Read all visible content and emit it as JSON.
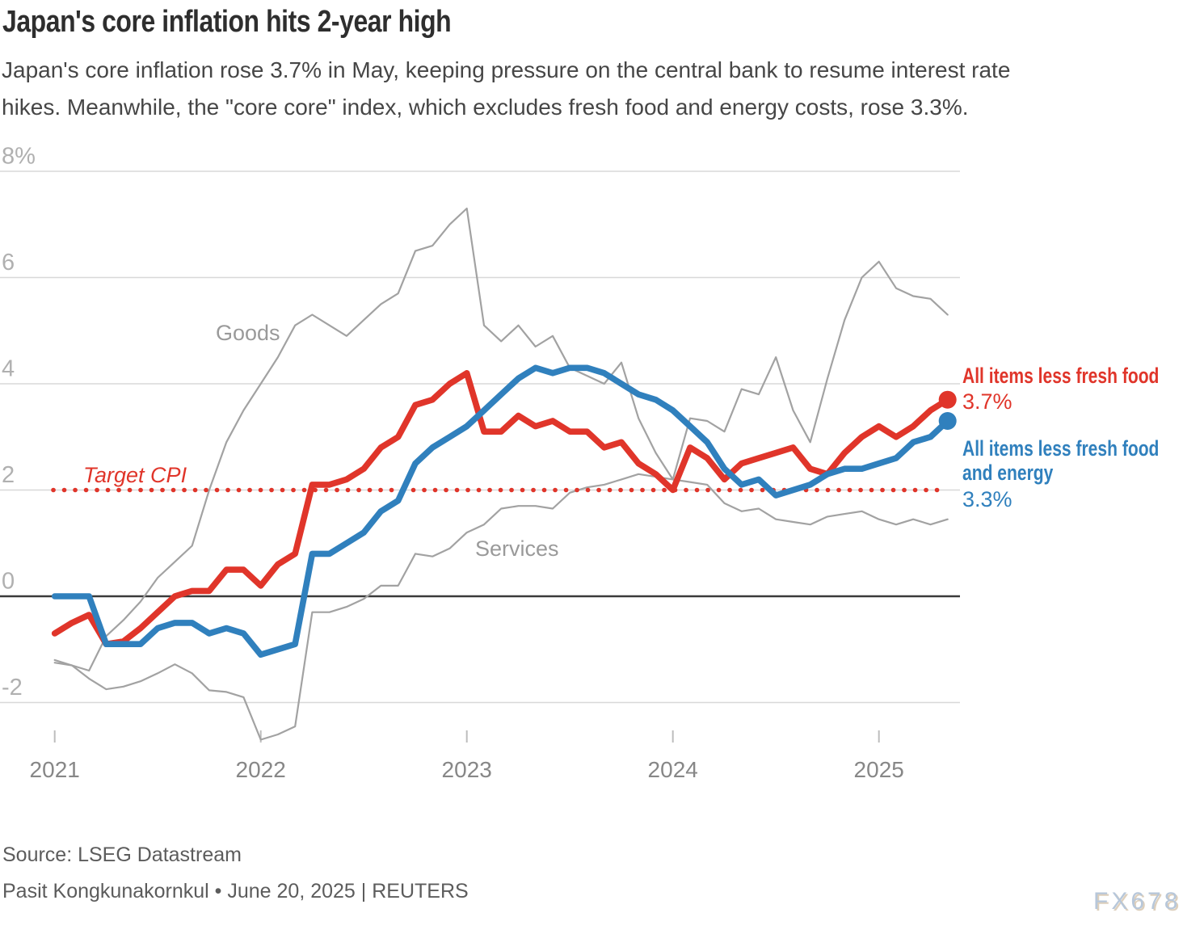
{
  "header": {
    "title": "Japan's core inflation hits 2-year high",
    "subtitle_lines": [
      "Japan's core inflation rose 3.7% in May, keeping pressure on the central bank to resume interest rate",
      "hikes. Meanwhile, the \"core core\" index, which excludes fresh food and energy costs, rose 3.3%."
    ]
  },
  "chart_data": {
    "type": "line",
    "title": "Japan's core inflation hits 2-year high",
    "ylabel": "",
    "xlabel": "",
    "y_unit": "%",
    "ylim": [
      -3,
      8
    ],
    "grid": true,
    "legend_position": "inline-right-annotations",
    "x_categories": [
      "2021-01",
      "2021-02",
      "2021-03",
      "2021-04",
      "2021-05",
      "2021-06",
      "2021-07",
      "2021-08",
      "2021-09",
      "2021-10",
      "2021-11",
      "2021-12",
      "2022-01",
      "2022-02",
      "2022-03",
      "2022-04",
      "2022-05",
      "2022-06",
      "2022-07",
      "2022-08",
      "2022-09",
      "2022-10",
      "2022-11",
      "2022-12",
      "2023-01",
      "2023-02",
      "2023-03",
      "2023-04",
      "2023-05",
      "2023-06",
      "2023-07",
      "2023-08",
      "2023-09",
      "2023-10",
      "2023-11",
      "2023-12",
      "2024-01",
      "2024-02",
      "2024-03",
      "2024-04",
      "2024-05",
      "2024-06",
      "2024-07",
      "2024-08",
      "2024-09",
      "2024-10",
      "2024-11",
      "2024-12",
      "2025-01",
      "2025-02",
      "2025-03",
      "2025-04",
      "2025-05"
    ],
    "y_ticks": [
      {
        "value": 8,
        "label": "8%"
      },
      {
        "value": 6,
        "label": "6"
      },
      {
        "value": 4,
        "label": "4"
      },
      {
        "value": 2,
        "label": "2"
      },
      {
        "value": 0,
        "label": "0"
      },
      {
        "value": -2,
        "label": "-2"
      }
    ],
    "x_ticks": [
      {
        "month_index": 0,
        "label": "2021"
      },
      {
        "month_index": 12,
        "label": "2022"
      },
      {
        "month_index": 24,
        "label": "2023"
      },
      {
        "month_index": 36,
        "label": "2024"
      },
      {
        "month_index": 48,
        "label": "2025"
      }
    ],
    "target": {
      "value": 2,
      "label": "Target CPI",
      "color": "#e0352a"
    },
    "series_labels": {
      "goods": "Goods",
      "services": "Services"
    },
    "series": [
      {
        "id": "goods",
        "name": "Goods",
        "color": "#a2a2a2",
        "line_width": 2.2,
        "layer": "bg",
        "end_dot": false,
        "values": [
          -1.25,
          -1.3,
          -1.4,
          -0.75,
          -0.45,
          -0.1,
          0.35,
          0.65,
          0.95,
          2.0,
          2.9,
          3.5,
          4.0,
          4.5,
          5.1,
          5.3,
          5.1,
          4.9,
          5.2,
          5.5,
          5.7,
          6.5,
          6.6,
          7.0,
          7.3,
          5.1,
          4.8,
          5.1,
          4.7,
          4.9,
          4.3,
          4.15,
          4.0,
          4.4,
          3.35,
          2.7,
          2.2,
          3.35,
          3.3,
          3.1,
          3.9,
          3.8,
          4.5,
          3.5,
          2.9,
          4.1,
          5.2,
          6.0,
          6.3,
          5.8,
          5.65,
          5.6,
          5.3
        ]
      },
      {
        "id": "services",
        "name": "Services",
        "color": "#a2a2a2",
        "line_width": 2.2,
        "layer": "bg",
        "end_dot": false,
        "values": [
          -1.2,
          -1.3,
          -1.55,
          -1.75,
          -1.7,
          -1.6,
          -1.45,
          -1.28,
          -1.45,
          -1.77,
          -1.8,
          -1.9,
          -2.7,
          -2.6,
          -2.45,
          -0.3,
          -0.3,
          -0.2,
          -0.05,
          0.2,
          0.2,
          0.8,
          0.75,
          0.9,
          1.2,
          1.35,
          1.65,
          1.7,
          1.7,
          1.65,
          1.95,
          2.05,
          2.1,
          2.2,
          2.3,
          2.25,
          2.2,
          2.15,
          2.1,
          1.75,
          1.6,
          1.65,
          1.45,
          1.4,
          1.35,
          1.5,
          1.55,
          1.6,
          1.45,
          1.35,
          1.45,
          1.35,
          1.45
        ]
      },
      {
        "id": "core",
        "name": "All items less fresh food",
        "color": "#e0352a",
        "line_width": 7.6,
        "layer": "fg",
        "end_dot": true,
        "latest_label": "3.7%",
        "values": [
          -0.7,
          -0.5,
          -0.35,
          -0.9,
          -0.85,
          -0.6,
          -0.3,
          0.0,
          0.1,
          0.1,
          0.5,
          0.5,
          0.2,
          0.6,
          0.8,
          2.1,
          2.1,
          2.2,
          2.4,
          2.8,
          3.0,
          3.6,
          3.7,
          4.0,
          4.2,
          3.1,
          3.1,
          3.4,
          3.2,
          3.3,
          3.1,
          3.1,
          2.8,
          2.9,
          2.5,
          2.3,
          2.0,
          2.8,
          2.6,
          2.2,
          2.5,
          2.6,
          2.7,
          2.8,
          2.4,
          2.3,
          2.7,
          3.0,
          3.2,
          3.0,
          3.2,
          3.5,
          3.7
        ]
      },
      {
        "id": "corecore",
        "name": "All items less fresh food and energy",
        "color": "#3080bd",
        "line_width": 7.6,
        "layer": "fg",
        "end_dot": true,
        "latest_label": "3.3%",
        "values": [
          0.0,
          0.0,
          0.0,
          -0.9,
          -0.9,
          -0.9,
          -0.6,
          -0.5,
          -0.5,
          -0.7,
          -0.6,
          -0.7,
          -1.1,
          -1.0,
          -0.9,
          0.8,
          0.8,
          1.0,
          1.2,
          1.6,
          1.8,
          2.5,
          2.8,
          3.0,
          3.2,
          3.5,
          3.8,
          4.1,
          4.3,
          4.2,
          4.3,
          4.3,
          4.2,
          4.0,
          3.8,
          3.7,
          3.5,
          3.2,
          2.9,
          2.4,
          2.1,
          2.2,
          1.9,
          2.0,
          2.1,
          2.3,
          2.4,
          2.4,
          2.5,
          2.6,
          2.9,
          3.0,
          3.3
        ]
      }
    ]
  },
  "annotations": {
    "core_label": "All items less fresh food",
    "core_value": "3.7%",
    "corecore_label_line1": "All items less fresh food",
    "corecore_label_line2": "and energy",
    "corecore_value": "3.3%"
  },
  "footer": {
    "source": "Source: LSEG Datastream",
    "byline": "Pasit Kongkunakornkul • June 20, 2025 | REUTERS",
    "watermark": "FX678"
  }
}
